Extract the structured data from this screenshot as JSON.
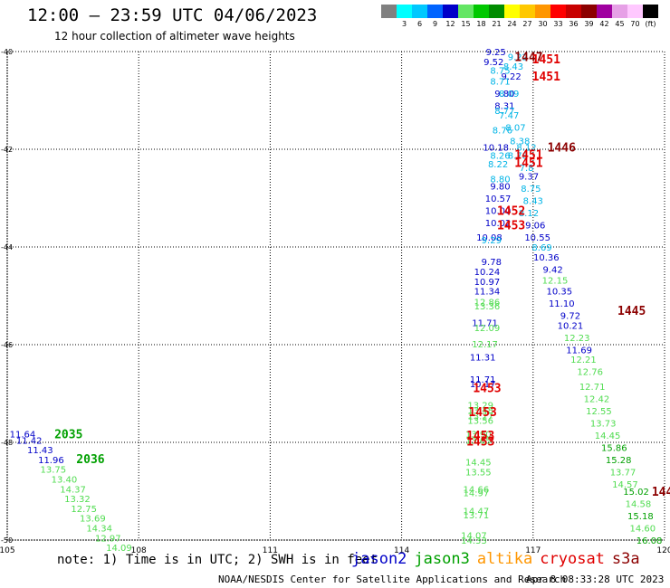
{
  "title": "12:00 — 23:59 UTC 04/06/2023",
  "subtitle": "12 hour collection of altimeter wave heights",
  "color_scale": {
    "unit": "(ft)",
    "swatches": [
      {
        "color": "#808080",
        "label": ""
      },
      {
        "color": "#00ffff",
        "label": "3"
      },
      {
        "color": "#00c8ff",
        "label": "6"
      },
      {
        "color": "#0064ff",
        "label": "9"
      },
      {
        "color": "#0000c8",
        "label": "12"
      },
      {
        "color": "#64e664",
        "label": "15"
      },
      {
        "color": "#00c800",
        "label": "18"
      },
      {
        "color": "#008c00",
        "label": "21"
      },
      {
        "color": "#ffff00",
        "label": "24"
      },
      {
        "color": "#ffc800",
        "label": "27"
      },
      {
        "color": "#ff9600",
        "label": "30"
      },
      {
        "color": "#ff0000",
        "label": "33"
      },
      {
        "color": "#c80000",
        "label": "36"
      },
      {
        "color": "#8c0000",
        "label": "39"
      },
      {
        "color": "#a000a0",
        "label": "42"
      },
      {
        "color": "#e6a0e6",
        "label": "45"
      },
      {
        "color": "#ffc8ff",
        "label": "70"
      },
      {
        "color": "#000000",
        "label": "(ft)"
      }
    ]
  },
  "note": "note: 1) Time is in UTC; 2) SWH is in feet",
  "legend": [
    {
      "name": "jason2",
      "color": "#0000c8"
    },
    {
      "name": "jason3",
      "color": "#00a000"
    },
    {
      "name": "altika",
      "color": "#ff9600"
    },
    {
      "name": "cryosat",
      "color": "#e00000"
    },
    {
      "name": "s3a",
      "color": "#8c0000"
    }
  ],
  "footer_credit": "NOAA/NESDIS Center for Satellite Applications and Research",
  "footer_date": "Apr  8 08:33:28 UTC 2023",
  "chart_data": {
    "type": "scatter",
    "title": "12 hour collection of altimeter wave heights",
    "x_ticks": [
      "105",
      "108",
      "111",
      "114",
      "117",
      "120"
    ],
    "y_ticks": [
      "-40",
      "-42",
      "-44",
      "-46",
      "-48",
      "-50"
    ],
    "xlim": [
      105,
      120
    ],
    "ylim": [
      -50,
      -40
    ],
    "grid": true,
    "colors": {
      "lblue": "#00b4e6",
      "dblue": "#0000c8",
      "lgreen": "#50dc50",
      "dgreen": "#00a000",
      "red": "#e00000",
      "maroon": "#8c0000"
    },
    "time_labels": [
      {
        "text": "1447",
        "lon": 116.9,
        "lat": -40.1,
        "color": "maroon"
      },
      {
        "text": "1451",
        "lon": 117.3,
        "lat": -40.15,
        "color": "red"
      },
      {
        "text": "1451",
        "lon": 117.3,
        "lat": -40.5,
        "color": "red"
      },
      {
        "text": "1446",
        "lon": 117.65,
        "lat": -41.95,
        "color": "maroon"
      },
      {
        "text": "1451",
        "lon": 116.9,
        "lat": -42.1,
        "color": "red"
      },
      {
        "text": "1451",
        "lon": 116.9,
        "lat": -42.27,
        "color": "red"
      },
      {
        "text": "1452",
        "lon": 116.5,
        "lat": -43.25,
        "color": "red"
      },
      {
        "text": "1453",
        "lon": 116.5,
        "lat": -43.55,
        "color": "red"
      },
      {
        "text": "1445",
        "lon": 119.25,
        "lat": -45.3,
        "color": "maroon"
      },
      {
        "text": "1453",
        "lon": 115.95,
        "lat": -46.88,
        "color": "red"
      },
      {
        "text": "1453",
        "lon": 115.85,
        "lat": -47.37,
        "color": "red"
      },
      {
        "text": "1453",
        "lon": 115.8,
        "lat": -47.85,
        "color": "red"
      },
      {
        "text": "1453",
        "lon": 115.8,
        "lat": -47.97,
        "color": "red"
      },
      {
        "text": "2035",
        "lon": 106.4,
        "lat": -47.82,
        "color": "dgreen"
      },
      {
        "text": "2036",
        "lon": 106.9,
        "lat": -48.33,
        "color": "dgreen"
      },
      {
        "text": "144",
        "lon": 119.95,
        "lat": -49.0,
        "color": "maroon"
      }
    ],
    "points": [
      {
        "v": "9.25",
        "lon": 116.15,
        "lat": -40.0,
        "c": "dblue"
      },
      {
        "v": "9.22",
        "lon": 116.65,
        "lat": -40.1,
        "c": "lblue"
      },
      {
        "v": "9.52",
        "lon": 116.1,
        "lat": -40.2,
        "c": "dblue"
      },
      {
        "v": "8.43",
        "lon": 116.55,
        "lat": -40.3,
        "c": "lblue"
      },
      {
        "v": "8.75",
        "lon": 116.25,
        "lat": -40.38,
        "c": "lblue"
      },
      {
        "v": "9.22",
        "lon": 116.5,
        "lat": -40.5,
        "c": "dblue"
      },
      {
        "v": "8.71",
        "lon": 116.25,
        "lat": -40.6,
        "c": "lblue"
      },
      {
        "v": "9.80",
        "lon": 116.35,
        "lat": -40.85,
        "c": "dblue"
      },
      {
        "v": "8.09",
        "lon": 116.45,
        "lat": -40.85,
        "c": "lblue"
      },
      {
        "v": "8.31",
        "lon": 116.35,
        "lat": -41.1,
        "c": "dblue"
      },
      {
        "v": "8.77",
        "lon": 116.35,
        "lat": -41.2,
        "c": "lblue"
      },
      {
        "v": "7.47",
        "lon": 116.45,
        "lat": -41.3,
        "c": "lblue"
      },
      {
        "v": "8.07",
        "lon": 116.6,
        "lat": -41.55,
        "c": "lblue"
      },
      {
        "v": "8.76",
        "lon": 116.3,
        "lat": -41.6,
        "c": "lblue"
      },
      {
        "v": "8.38",
        "lon": 116.7,
        "lat": -41.82,
        "c": "lblue"
      },
      {
        "v": "10.18",
        "lon": 116.15,
        "lat": -41.95,
        "c": "dblue"
      },
      {
        "v": "8.12",
        "lon": 116.85,
        "lat": -41.95,
        "c": "lblue"
      },
      {
        "v": "8.26",
        "lon": 116.25,
        "lat": -42.12,
        "c": "lblue"
      },
      {
        "v": "8.78",
        "lon": 116.65,
        "lat": -42.12,
        "c": "lblue"
      },
      {
        "v": "8.22",
        "lon": 116.2,
        "lat": -42.3,
        "c": "lblue"
      },
      {
        "v": "7.8",
        "lon": 116.85,
        "lat": -42.37,
        "c": "lblue"
      },
      {
        "v": "9.37",
        "lon": 116.9,
        "lat": -42.55,
        "c": "dblue"
      },
      {
        "v": "8.80",
        "lon": 116.25,
        "lat": -42.6,
        "c": "lblue"
      },
      {
        "v": "9.80",
        "lon": 116.25,
        "lat": -42.75,
        "c": "dblue"
      },
      {
        "v": "8.75",
        "lon": 116.95,
        "lat": -42.8,
        "c": "lblue"
      },
      {
        "v": "10.57",
        "lon": 116.2,
        "lat": -43.0,
        "c": "dblue"
      },
      {
        "v": "8.43",
        "lon": 117.0,
        "lat": -43.05,
        "c": "lblue"
      },
      {
        "v": "10.00",
        "lon": 116.2,
        "lat": -43.25,
        "c": "dblue"
      },
      {
        "v": "8.12",
        "lon": 116.9,
        "lat": -43.3,
        "c": "lblue"
      },
      {
        "v": "10.02",
        "lon": 116.2,
        "lat": -43.5,
        "c": "dblue"
      },
      {
        "v": "9.06",
        "lon": 117.05,
        "lat": -43.55,
        "c": "dblue"
      },
      {
        "v": "10.08",
        "lon": 116.0,
        "lat": -43.8,
        "c": "dblue"
      },
      {
        "v": "9.29",
        "lon": 116.05,
        "lat": -43.85,
        "c": "lblue"
      },
      {
        "v": "10.55",
        "lon": 117.1,
        "lat": -43.8,
        "c": "dblue"
      },
      {
        "v": "8.69",
        "lon": 117.2,
        "lat": -44.0,
        "c": "lblue"
      },
      {
        "v": "9.78",
        "lon": 116.05,
        "lat": -44.3,
        "c": "dblue"
      },
      {
        "v": "10.36",
        "lon": 117.3,
        "lat": -44.2,
        "c": "dblue"
      },
      {
        "v": "9.42",
        "lon": 117.45,
        "lat": -44.45,
        "c": "dblue"
      },
      {
        "v": "10.24",
        "lon": 115.95,
        "lat": -44.5,
        "c": "dblue"
      },
      {
        "v": "12.15",
        "lon": 117.5,
        "lat": -44.68,
        "c": "lgreen"
      },
      {
        "v": "10.97",
        "lon": 115.95,
        "lat": -44.7,
        "c": "dblue"
      },
      {
        "v": "11.34",
        "lon": 115.95,
        "lat": -44.9,
        "c": "dblue"
      },
      {
        "v": "10.35",
        "lon": 117.6,
        "lat": -44.9,
        "c": "dblue"
      },
      {
        "v": "11.10",
        "lon": 117.65,
        "lat": -45.15,
        "c": "dblue"
      },
      {
        "v": "12.86",
        "lon": 115.95,
        "lat": -45.12,
        "c": "lgreen"
      },
      {
        "v": "13.36",
        "lon": 115.95,
        "lat": -45.2,
        "c": "lgreen"
      },
      {
        "v": "9.72",
        "lon": 117.85,
        "lat": -45.4,
        "c": "dblue"
      },
      {
        "v": "10.21",
        "lon": 117.85,
        "lat": -45.6,
        "c": "dblue"
      },
      {
        "v": "11.71",
        "lon": 115.9,
        "lat": -45.55,
        "c": "dblue"
      },
      {
        "v": "12.09",
        "lon": 115.95,
        "lat": -45.65,
        "c": "lgreen"
      },
      {
        "v": "12.23",
        "lon": 118.0,
        "lat": -45.85,
        "c": "lgreen"
      },
      {
        "v": "12.17",
        "lon": 115.9,
        "lat": -45.98,
        "c": "lgreen"
      },
      {
        "v": "11.69",
        "lon": 118.05,
        "lat": -46.1,
        "c": "dblue"
      },
      {
        "v": "11.31",
        "lon": 115.85,
        "lat": -46.25,
        "c": "dblue"
      },
      {
        "v": "12.21",
        "lon": 118.15,
        "lat": -46.3,
        "c": "lgreen"
      },
      {
        "v": "12.76",
        "lon": 118.3,
        "lat": -46.55,
        "c": "lgreen"
      },
      {
        "v": "11.71",
        "lon": 115.85,
        "lat": -46.7,
        "c": "dblue"
      },
      {
        "v": "10.17",
        "lon": 115.85,
        "lat": -46.8,
        "c": "dblue"
      },
      {
        "v": "12.71",
        "lon": 118.35,
        "lat": -46.85,
        "c": "lgreen"
      },
      {
        "v": "12.42",
        "lon": 118.45,
        "lat": -47.1,
        "c": "lgreen"
      },
      {
        "v": "13.29",
        "lon": 115.8,
        "lat": -47.23,
        "c": "lgreen"
      },
      {
        "v": "13.48",
        "lon": 115.8,
        "lat": -47.33,
        "c": "lgreen"
      },
      {
        "v": "12.55",
        "lon": 118.5,
        "lat": -47.35,
        "c": "lgreen"
      },
      {
        "v": "13.27",
        "lon": 115.8,
        "lat": -47.45,
        "c": "lgreen"
      },
      {
        "v": "13.56",
        "lon": 115.8,
        "lat": -47.55,
        "c": "lgreen"
      },
      {
        "v": "13.73",
        "lon": 118.6,
        "lat": -47.6,
        "c": "lgreen"
      },
      {
        "v": "14.45",
        "lon": 118.7,
        "lat": -47.85,
        "c": "lgreen"
      },
      {
        "v": "13.90",
        "lon": 115.75,
        "lat": -47.82,
        "c": "lgreen"
      },
      {
        "v": "13.65",
        "lon": 115.75,
        "lat": -47.95,
        "c": "lgreen"
      },
      {
        "v": "15.86",
        "lon": 118.85,
        "lat": -48.1,
        "c": "dgreen"
      },
      {
        "v": "14.45",
        "lon": 115.75,
        "lat": -48.4,
        "c": "lgreen"
      },
      {
        "v": "15.28",
        "lon": 118.95,
        "lat": -48.35,
        "c": "dgreen"
      },
      {
        "v": "13.55",
        "lon": 115.75,
        "lat": -48.6,
        "c": "lgreen"
      },
      {
        "v": "13.77",
        "lon": 119.05,
        "lat": -48.6,
        "c": "lgreen"
      },
      {
        "v": "14.57",
        "lon": 119.1,
        "lat": -48.85,
        "c": "lgreen"
      },
      {
        "v": "14.66",
        "lon": 115.7,
        "lat": -48.95,
        "c": "lgreen"
      },
      {
        "v": "14.97",
        "lon": 115.7,
        "lat": -49.03,
        "c": "lgreen"
      },
      {
        "v": "15.02",
        "lon": 119.35,
        "lat": -49.0,
        "c": "dgreen"
      },
      {
        "v": "14.58",
        "lon": 119.4,
        "lat": -49.25,
        "c": "lgreen"
      },
      {
        "v": "14.47",
        "lon": 115.7,
        "lat": -49.4,
        "c": "lgreen"
      },
      {
        "v": "13.71",
        "lon": 115.7,
        "lat": -49.48,
        "c": "lgreen"
      },
      {
        "v": "15.18",
        "lon": 119.45,
        "lat": -49.5,
        "c": "dgreen"
      },
      {
        "v": "14.60",
        "lon": 119.5,
        "lat": -49.75,
        "c": "lgreen"
      },
      {
        "v": "14.07",
        "lon": 115.65,
        "lat": -49.9,
        "c": "lgreen"
      },
      {
        "v": "14.33",
        "lon": 115.65,
        "lat": -50.0,
        "c": "lgreen"
      },
      {
        "v": "16.08",
        "lon": 119.65,
        "lat": -50.0,
        "c": "dgreen"
      },
      {
        "v": "11.64",
        "lon": 105.35,
        "lat": -47.82,
        "c": "dblue"
      },
      {
        "v": "11.42",
        "lon": 105.5,
        "lat": -47.95,
        "c": "dblue"
      },
      {
        "v": "11.43",
        "lon": 105.75,
        "lat": -48.15,
        "c": "dblue"
      },
      {
        "v": "11.96",
        "lon": 106.0,
        "lat": -48.35,
        "c": "dblue"
      },
      {
        "v": "13.75",
        "lon": 106.05,
        "lat": -48.55,
        "c": "lgreen"
      },
      {
        "v": "13.40",
        "lon": 106.3,
        "lat": -48.75,
        "c": "lgreen"
      },
      {
        "v": "14.37",
        "lon": 106.5,
        "lat": -48.95,
        "c": "lgreen"
      },
      {
        "v": "13.32",
        "lon": 106.6,
        "lat": -49.15,
        "c": "lgreen"
      },
      {
        "v": "12.75",
        "lon": 106.75,
        "lat": -49.35,
        "c": "lgreen"
      },
      {
        "v": "13.69",
        "lon": 106.95,
        "lat": -49.55,
        "c": "lgreen"
      },
      {
        "v": "14.34",
        "lon": 107.1,
        "lat": -49.75,
        "c": "lgreen"
      },
      {
        "v": "12.97",
        "lon": 107.3,
        "lat": -49.95,
        "c": "lgreen"
      },
      {
        "v": "14.09",
        "lon": 107.55,
        "lat": -50.15,
        "c": "lgreen"
      }
    ]
  }
}
